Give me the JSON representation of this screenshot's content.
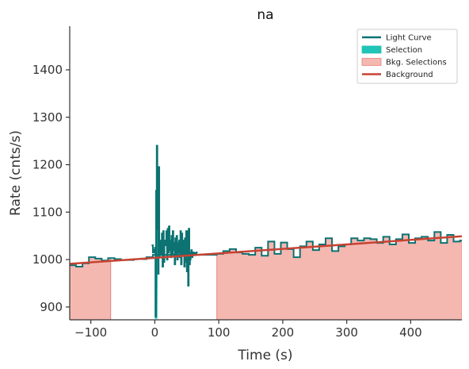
{
  "chart_data": {
    "type": "line",
    "title": "na",
    "xlabel": "Time (s)",
    "ylabel": "Rate (cnts/s)",
    "xlim": [
      -133,
      480
    ],
    "ylim": [
      873,
      1492
    ],
    "xticks": [
      -100,
      0,
      100,
      200,
      300,
      400
    ],
    "yticks": [
      900,
      1000,
      1100,
      1200,
      1300,
      1400
    ],
    "xtick_labels": [
      "−100",
      "0",
      "100",
      "200",
      "300",
      "400"
    ],
    "ytick_labels": [
      "900",
      "1000",
      "1100",
      "1200",
      "1300",
      "1400"
    ],
    "legend_position": "top-right",
    "colors": {
      "light_curve": "#0d7272",
      "selection": "#1fc4b6",
      "bkg_selection_fill": "#f4b8b1",
      "bkg_selection_edge": "#e8837a",
      "background": "#c84232",
      "axis": "#333333"
    },
    "legend": [
      {
        "label": "Light Curve",
        "kind": "line",
        "color": "#0d7272"
      },
      {
        "label": "Selection",
        "kind": "patch",
        "color": "#1fc4b6"
      },
      {
        "label": "Bkg. Selections",
        "kind": "patch",
        "color": "#f4b8b1"
      },
      {
        "label": "Background",
        "kind": "line",
        "color": "#c84232"
      }
    ],
    "background_line": {
      "x": [
        -133,
        480
      ],
      "y": [
        991,
        1049
      ]
    },
    "bkg_selections": [
      [
        -133,
        -69
      ],
      [
        97,
        480
      ]
    ],
    "selection": [
      0,
      4
    ],
    "selection_ymin": 875,
    "light_curve_coarse": {
      "x": [
        -133,
        -123,
        -113,
        -103,
        -93,
        -83,
        -73,
        -63,
        -53,
        -43,
        -33,
        -23,
        -13,
        -3,
        97,
        107,
        117,
        127,
        137,
        147,
        157,
        167,
        177,
        187,
        197,
        207,
        217,
        227,
        237,
        247,
        257,
        267,
        277,
        287,
        297,
        307,
        317,
        327,
        337,
        347,
        357,
        367,
        377,
        387,
        397,
        407,
        417,
        427,
        437,
        447,
        457,
        467,
        477
      ],
      "y": [
        988,
        985,
        992,
        1005,
        1002,
        998,
        1003,
        1001,
        999,
        999,
        1001,
        1001,
        1005,
        1010,
        1012,
        1018,
        1022,
        1015,
        1012,
        1010,
        1025,
        1008,
        1038,
        1012,
        1036,
        1022,
        1005,
        1028,
        1038,
        1020,
        1032,
        1045,
        1018,
        1028,
        1032,
        1045,
        1040,
        1045,
        1043,
        1035,
        1048,
        1032,
        1043,
        1053,
        1035,
        1045,
        1048,
        1040,
        1058,
        1035,
        1052,
        1038,
        1040
      ]
    },
    "light_curve_fine": {
      "x": [
        -5,
        -3,
        -1,
        0,
        1,
        2,
        3,
        4,
        5,
        6,
        7,
        8,
        9,
        10,
        11,
        12,
        13,
        14,
        15,
        16,
        17,
        18,
        19,
        20,
        21,
        22,
        23,
        24,
        25,
        26,
        27,
        28,
        29,
        30,
        31,
        32,
        33,
        34,
        35,
        36,
        37,
        38,
        39,
        40,
        41,
        42,
        43,
        44,
        45,
        46,
        47,
        48,
        49,
        50,
        51,
        52,
        53,
        54,
        55,
        56,
        57,
        58,
        59,
        60,
        61,
        62,
        63,
        64,
        65
      ],
      "y": [
        1030,
        1015,
        1020,
        1025,
        880,
        1145,
        1240,
        1065,
        970,
        1195,
        1005,
        1010,
        1040,
        1010,
        1055,
        985,
        1060,
        995,
        1035,
        1040,
        1030,
        1060,
        1000,
        1065,
        1015,
        1070,
        1020,
        1040,
        1005,
        1050,
        1010,
        1060,
        1020,
        1035,
        990,
        1045,
        1010,
        1050,
        1000,
        1035,
        1015,
        1040,
        1005,
        1060,
        990,
        1055,
        1010,
        1025,
        1040,
        985,
        1045,
        995,
        1060,
        975,
        1060,
        945,
        1065,
        990,
        1000,
        1015,
        1020,
        1005,
        1010,
        1015,
        1012,
        1014,
        1010,
        1012,
        1015
      ]
    }
  }
}
